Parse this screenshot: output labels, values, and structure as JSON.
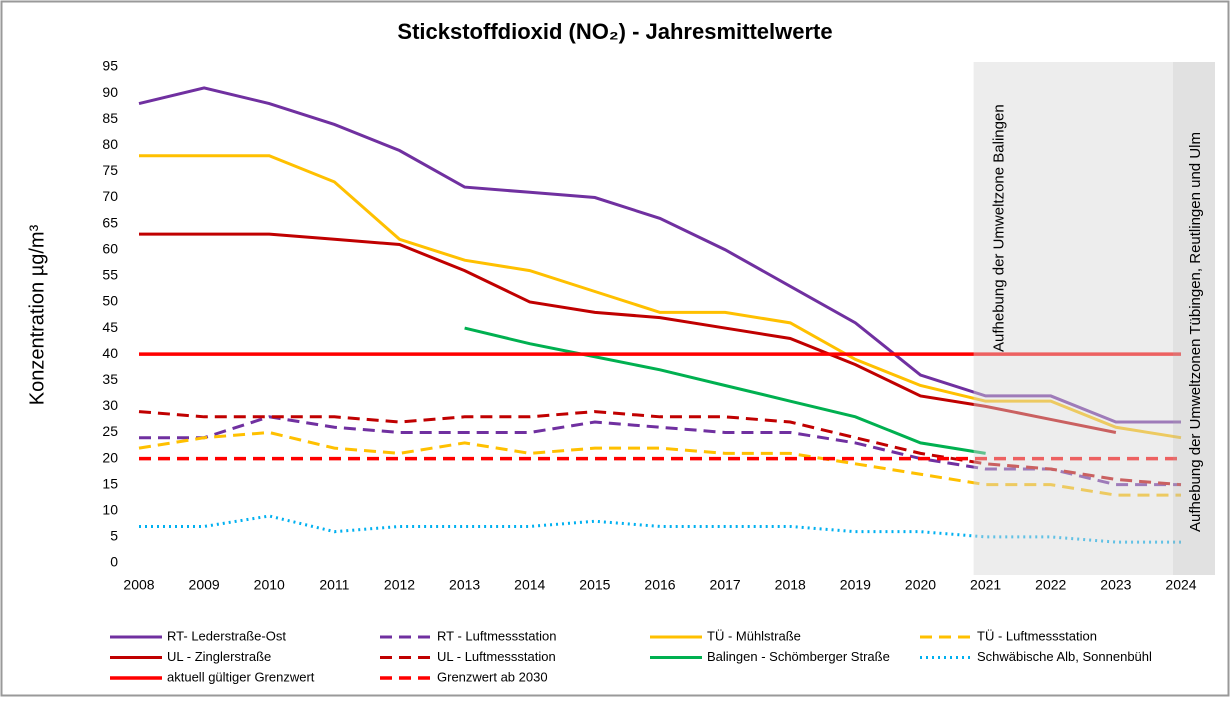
{
  "chart_data": {
    "type": "line",
    "title": "Stickstoffdioxid (NO₂) - Jahresmittelwerte",
    "y_label": "Konzentration µg/m³",
    "x": [
      2008,
      2009,
      2010,
      2011,
      2012,
      2013,
      2014,
      2015,
      2016,
      2017,
      2018,
      2019,
      2020,
      2021,
      2022,
      2023,
      2024
    ],
    "xlim": [
      2008,
      2024
    ],
    "ylim": [
      0,
      95
    ],
    "yticks": [
      0,
      5,
      10,
      15,
      20,
      25,
      30,
      35,
      40,
      45,
      50,
      55,
      60,
      65,
      70,
      75,
      80,
      85,
      90,
      95
    ],
    "grid": false,
    "annotations": [
      {
        "text": "Aufhebung der Umweltzone Balingen",
        "x": 2021
      },
      {
        "text": "Aufhebung der Umweltzonen Tübingen, Reutlingen und Ulm",
        "x": 2024
      }
    ],
    "series": [
      {
        "name": "RT- Lederstraße-Ost",
        "color": "#7030a0",
        "dash": "solid",
        "values": [
          88,
          91,
          88,
          84,
          79,
          72,
          71,
          70,
          66,
          60,
          53,
          46,
          36,
          32,
          32,
          27,
          27
        ]
      },
      {
        "name": "RT - Luftmessstation",
        "color": "#7030a0",
        "dash": "dashed",
        "values": [
          24,
          24,
          28,
          26,
          25,
          25,
          25,
          27,
          26,
          25,
          25,
          23,
          20,
          18,
          18,
          15,
          15
        ]
      },
      {
        "name": "TÜ - Mühlstraße",
        "color": "#ffc000",
        "dash": "solid",
        "values": [
          78,
          78,
          78,
          73,
          62,
          58,
          56,
          52,
          48,
          48,
          46,
          39,
          34,
          31,
          31,
          26,
          24
        ]
      },
      {
        "name": "TÜ - Luftmessstation",
        "color": "#ffc000",
        "dash": "dashed",
        "values": [
          22,
          24,
          25,
          22,
          21,
          23,
          21,
          22,
          22,
          21,
          21,
          19,
          17,
          15,
          15,
          13,
          13
        ]
      },
      {
        "name": "UL - Zinglerstraße",
        "color": "#c00000",
        "dash": "solid",
        "values": [
          63,
          63,
          63,
          62,
          61,
          56,
          50,
          48,
          47,
          45,
          43,
          38,
          32,
          30,
          27.5,
          25,
          null
        ]
      },
      {
        "name": "UL - Luftmessstation",
        "color": "#c00000",
        "dash": "dashed",
        "values": [
          29,
          28,
          28,
          28,
          27,
          28,
          28,
          29,
          28,
          28,
          27,
          24,
          21,
          19,
          18,
          16,
          15
        ]
      },
      {
        "name": "Balingen - Schömberger Straße",
        "color": "#00b050",
        "dash": "solid",
        "values": [
          null,
          null,
          null,
          null,
          null,
          45,
          42,
          39.5,
          37,
          34,
          31,
          28,
          23,
          21,
          null,
          null,
          null
        ]
      },
      {
        "name": "Schwäbische Alb, Sonnenbühl",
        "color": "#00b0f0",
        "dash": "dotted",
        "values": [
          7,
          7,
          9,
          6,
          7,
          7,
          7,
          8,
          7,
          7,
          7,
          6,
          6,
          5,
          5,
          4,
          4
        ]
      },
      {
        "name": "aktuell gültiger Grenzwert",
        "color": "#ff0000",
        "dash": "solid",
        "width": 3.5,
        "values": [
          40,
          40,
          40,
          40,
          40,
          40,
          40,
          40,
          40,
          40,
          40,
          40,
          40,
          40,
          40,
          40,
          40
        ]
      },
      {
        "name": "Grenzwert ab 2030",
        "color": "#ff0000",
        "dash": "dashed",
        "width": 3.5,
        "values": [
          20,
          20,
          20,
          20,
          20,
          20,
          20,
          20,
          20,
          20,
          20,
          20,
          20,
          20,
          20,
          20,
          20
        ]
      }
    ]
  }
}
